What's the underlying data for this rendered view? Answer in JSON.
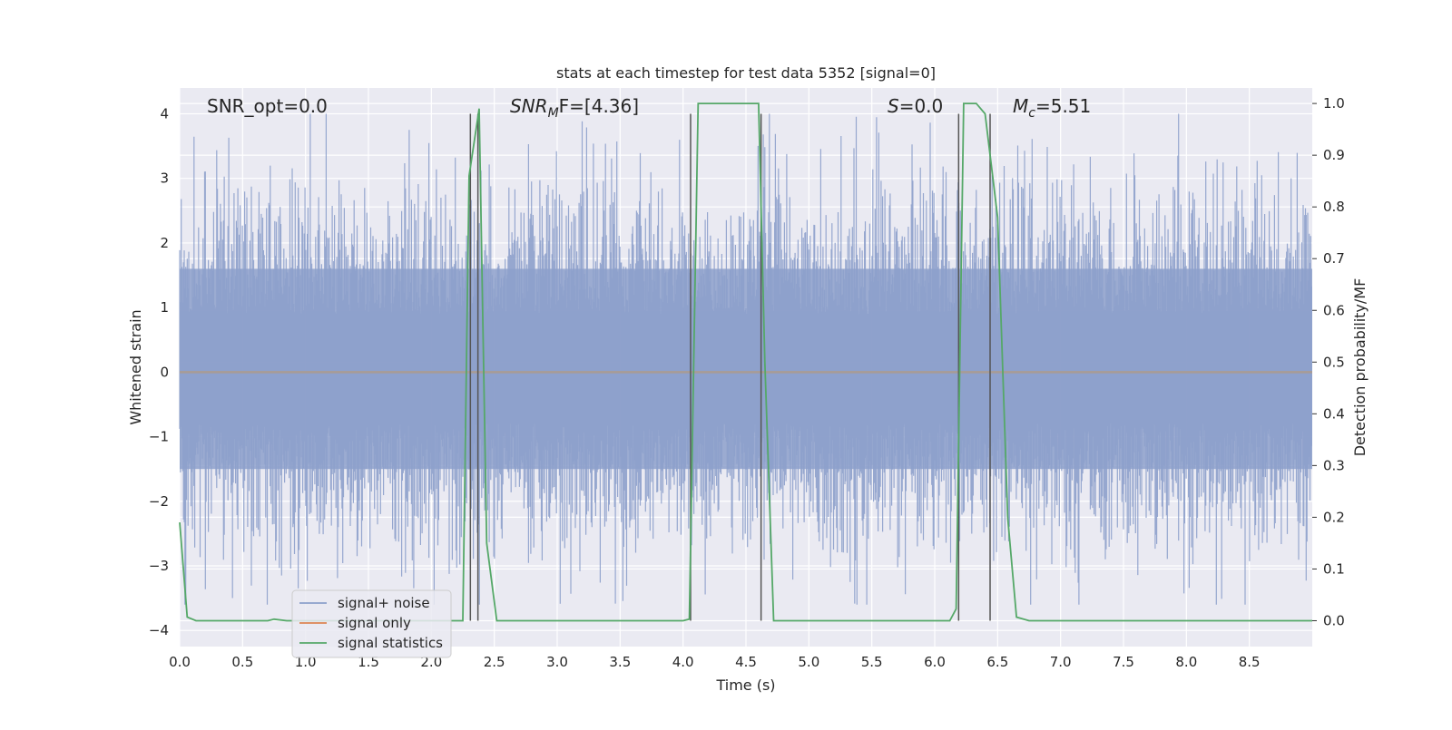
{
  "chart_data": {
    "type": "line",
    "title": "stats at each timestep for test data 5352 [signal=0]",
    "xlabel": "Time (s)",
    "ylabel_left": "Whitened strain",
    "ylabel_right": "Detection probability/MF",
    "xlim": [
      0.0,
      9.0
    ],
    "ylim_left": [
      -4.25,
      4.4
    ],
    "ylim_right": [
      -0.05,
      1.03
    ],
    "xticks": [
      "0.0",
      "0.5",
      "1.0",
      "1.5",
      "2.0",
      "2.5",
      "3.0",
      "3.5",
      "4.0",
      "4.5",
      "5.0",
      "5.5",
      "6.0",
      "6.5",
      "7.0",
      "7.5",
      "8.0",
      "8.5"
    ],
    "yticks_left": [
      "4",
      "3",
      "2",
      "1",
      "0",
      "−1",
      "−2",
      "−3",
      "−4"
    ],
    "yticks_right": [
      "1.0",
      "0.9",
      "0.8",
      "0.7",
      "0.6",
      "0.5",
      "0.4",
      "0.3",
      "0.2",
      "0.1",
      "0.0"
    ],
    "grid": true,
    "legend_placement": "lower-left",
    "annotations": {
      "snr_opt": "SNR_opt=0.0",
      "snr_mf_base": "SNR",
      "snr_mf_sub": "M",
      "snr_mf_rest": "F=[4.36]",
      "s_base": "S",
      "s_rest": "=0.0",
      "mc_base": "M",
      "mc_sub": "c",
      "mc_rest": "=5.51"
    },
    "series": [
      {
        "name": "signal+ noise",
        "color": "#8da0cb",
        "description_values": "whitened strain noise, approx range -3.6 to 4.0"
      },
      {
        "name": "signal only",
        "color": "#dd8452",
        "values_constant": 0.0
      },
      {
        "name": "signal statistics",
        "color": "#55a868",
        "x": [
          0.0,
          0.06,
          0.13,
          0.5,
          0.7,
          0.75,
          0.85,
          1.0,
          1.5,
          2.0,
          2.25,
          2.3,
          2.38,
          2.44,
          2.52,
          3.0,
          3.5,
          4.0,
          4.05,
          4.12,
          4.3,
          4.5,
          4.6,
          4.65,
          4.72,
          4.8,
          5.0,
          5.5,
          6.0,
          6.12,
          6.17,
          6.23,
          6.33,
          6.4,
          6.5,
          6.58,
          6.65,
          6.75,
          7.0,
          8.0,
          9.0
        ],
        "y": [
          0.19,
          0.007,
          0.0,
          0.0,
          0.0,
          0.003,
          0.0,
          0.0,
          0.0,
          0.0,
          0.0,
          0.86,
          0.99,
          0.15,
          0.0,
          0.0,
          0.0,
          0.0,
          0.003,
          1.0,
          1.0,
          1.0,
          1.0,
          0.5,
          0.0,
          0.0,
          0.0,
          0.0,
          0.0,
          0.0,
          0.023,
          1.0,
          1.0,
          0.98,
          0.78,
          0.2,
          0.007,
          0.0,
          0.0,
          0.0,
          0.0
        ]
      }
    ],
    "vertical_lines": [
      2.31,
      2.37,
      4.06,
      4.62,
      6.19,
      6.44
    ],
    "noise_hist_fill": {
      "inner_band": [
        -1.5,
        1.6
      ]
    }
  },
  "legend": {
    "items": [
      {
        "label": "signal+ noise",
        "color": "#8da0cb"
      },
      {
        "label": "signal only",
        "color": "#dd8452"
      },
      {
        "label": "signal statistics",
        "color": "#55a868"
      }
    ]
  }
}
